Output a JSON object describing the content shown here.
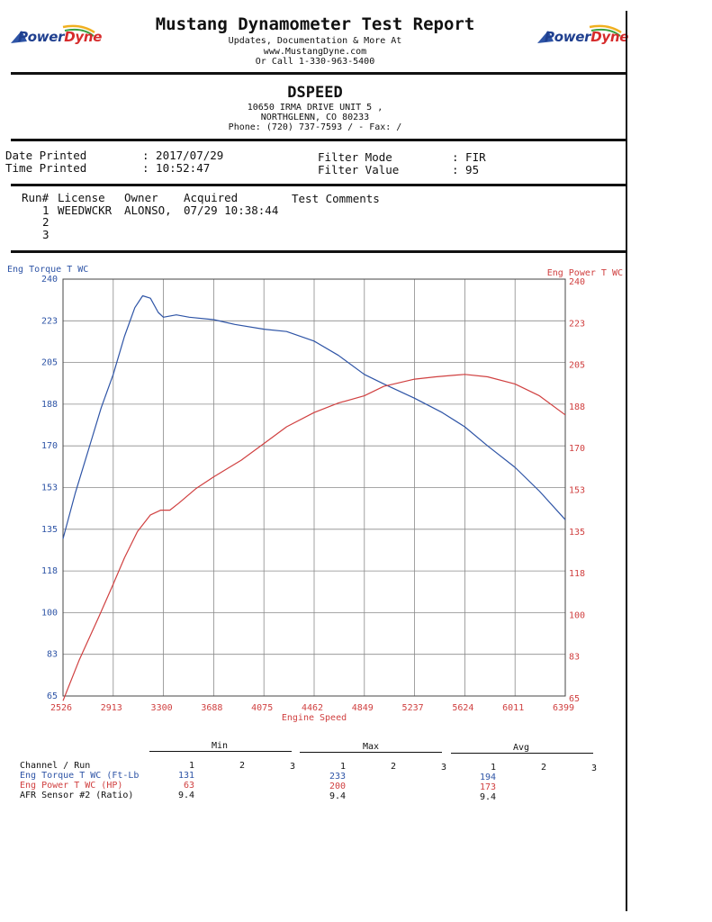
{
  "header": {
    "brand_part1": "Power",
    "brand_part2": "Dyne",
    "title": "Mustang Dynamometer Test Report",
    "line1": "Updates, Documentation & More At",
    "line2": "www.MustangDyne.com",
    "line3": "Or Call 1-330-963-5400"
  },
  "shop": {
    "name": "DSPEED",
    "addr1": "10650 IRMA DRIVE UNIT 5 ,",
    "addr2": "NORTHGLENN, CO  80233",
    "phone": "Phone: (720) 737-7593 /  - Fax:  /"
  },
  "info": {
    "date_label": "Date Printed",
    "time_label": "Time Printed",
    "date_value": ": 2017/07/29",
    "time_value": ": 10:52:47",
    "filter_mode_label": "Filter Mode",
    "filter_value_label": "Filter Value",
    "filter_mode_value": ": FIR",
    "filter_value_value": ": 95"
  },
  "runs": {
    "headers": [
      "Run#",
      "License",
      "Owner",
      "Acquired",
      "Test Comments"
    ],
    "rows": [
      [
        "1",
        "WEEDWCKR",
        "ALONSO,",
        "07/29 10:38:44",
        ""
      ],
      [
        "2",
        "",
        "",
        "",
        ""
      ],
      [
        "3",
        "",
        "",
        "",
        ""
      ]
    ]
  },
  "chart_data": {
    "type": "line",
    "xlabel": "Engine Speed",
    "ylabel_left": "Eng Torque T WC",
    "ylabel_right": "Eng Power T WC",
    "xlim": [
      2526,
      6399
    ],
    "ylim": [
      65,
      240
    ],
    "x_ticks": [
      "2526",
      "2913",
      "3300",
      "3688",
      "4075",
      "4462",
      "4849",
      "5237",
      "5624",
      "6011",
      "6399"
    ],
    "y_ticks": [
      "240",
      "223",
      "205",
      "188",
      "170",
      "153",
      "135",
      "118",
      "100",
      "83",
      "65"
    ],
    "grid": true,
    "series": [
      {
        "name": "Eng Torque T WC",
        "axis": "left",
        "color": "#2e54a6",
        "points": [
          [
            2526,
            131
          ],
          [
            2620,
            150
          ],
          [
            2720,
            168
          ],
          [
            2820,
            186
          ],
          [
            2913,
            200
          ],
          [
            3000,
            216
          ],
          [
            3080,
            228
          ],
          [
            3140,
            233
          ],
          [
            3200,
            232
          ],
          [
            3260,
            226
          ],
          [
            3300,
            224
          ],
          [
            3400,
            225
          ],
          [
            3500,
            224
          ],
          [
            3688,
            223
          ],
          [
            3850,
            221
          ],
          [
            4075,
            219
          ],
          [
            4250,
            218
          ],
          [
            4462,
            214
          ],
          [
            4650,
            208
          ],
          [
            4849,
            200
          ],
          [
            5000,
            196
          ],
          [
            5237,
            190
          ],
          [
            5450,
            184
          ],
          [
            5624,
            178
          ],
          [
            5800,
            170
          ],
          [
            6011,
            161
          ],
          [
            6200,
            151
          ],
          [
            6399,
            139
          ]
        ]
      },
      {
        "name": "Eng Power T WC",
        "axis": "right",
        "color": "#d04040",
        "points": [
          [
            2526,
            63
          ],
          [
            2650,
            80
          ],
          [
            2800,
            98
          ],
          [
            2913,
            112
          ],
          [
            3000,
            123
          ],
          [
            3100,
            134
          ],
          [
            3200,
            141
          ],
          [
            3280,
            143
          ],
          [
            3350,
            143
          ],
          [
            3420,
            146
          ],
          [
            3550,
            152
          ],
          [
            3688,
            157
          ],
          [
            3900,
            164
          ],
          [
            4075,
            171
          ],
          [
            4250,
            178
          ],
          [
            4462,
            184
          ],
          [
            4650,
            188
          ],
          [
            4849,
            191
          ],
          [
            5000,
            195
          ],
          [
            5237,
            198
          ],
          [
            5400,
            199
          ],
          [
            5624,
            200
          ],
          [
            5800,
            199
          ],
          [
            6011,
            196
          ],
          [
            6200,
            191
          ],
          [
            6399,
            183
          ]
        ]
      }
    ]
  },
  "summary": {
    "groups": [
      "Min",
      "Max",
      "Avg"
    ],
    "run_nums": [
      "1",
      "2",
      "3"
    ],
    "channel_header": "Channel / Run",
    "rows": [
      {
        "label": "Eng Torque T WC (Ft-Lb",
        "min": "131",
        "max": "233",
        "avg": "194",
        "color": "#2e54a6"
      },
      {
        "label": "Eng Power T WC (HP)",
        "min": "63",
        "max": "200",
        "avg": "173",
        "color": "#d04040"
      },
      {
        "label": "AFR Sensor #2 (Ratio)",
        "min": "9.4",
        "max": "9.4",
        "avg": "9.4",
        "color": "#111111"
      }
    ]
  }
}
